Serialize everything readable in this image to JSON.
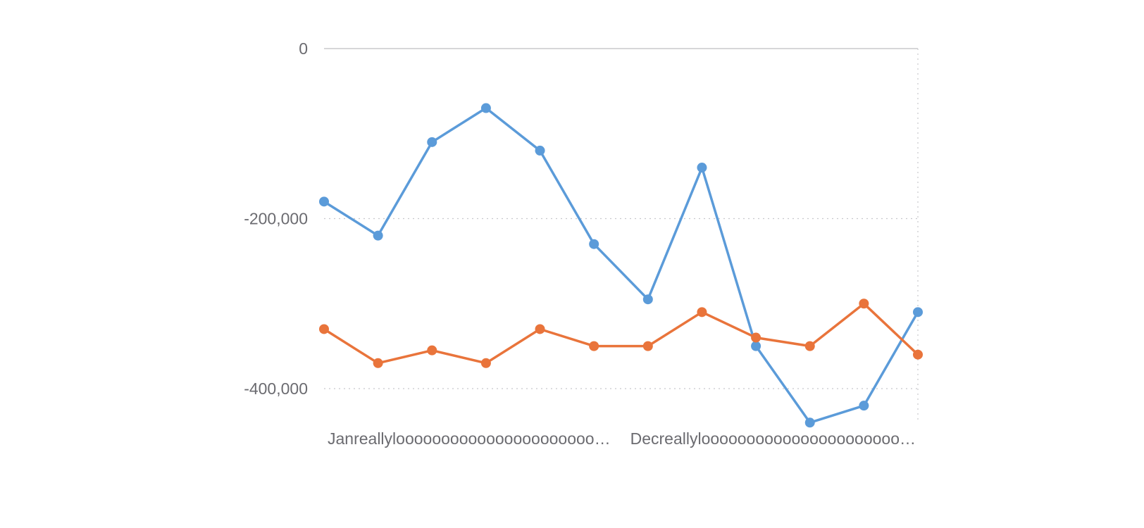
{
  "chart_data": {
    "type": "line",
    "title": "",
    "xlabel": "",
    "ylabel": "",
    "ylim": [
      -440000,
      0
    ],
    "yticks": [
      0,
      -200000,
      -400000
    ],
    "ytick_labels": [
      "0",
      "-200,000",
      "-400,000"
    ],
    "x_tick_labels": [
      "Janreallyloooooooooooooooooooooo…",
      "Decreallyloooooooooooooooooooooo…"
    ],
    "point_count": 12,
    "grid": "dotted horizontal at -200,000 and -400,000; dotted vertical at right edge",
    "legend": "none",
    "series": [
      {
        "color": "#5b9bd9",
        "values": [
          -180000,
          -220000,
          -110000,
          -70000,
          -120000,
          -230000,
          -295000,
          -140000,
          -350000,
          -440000,
          -420000,
          -310000
        ]
      },
      {
        "color": "#e9743b",
        "values": [
          -330000,
          -370000,
          -355000,
          -370000,
          -330000,
          -350000,
          -350000,
          -310000,
          -340000,
          -350000,
          -300000,
          -360000
        ]
      }
    ]
  }
}
